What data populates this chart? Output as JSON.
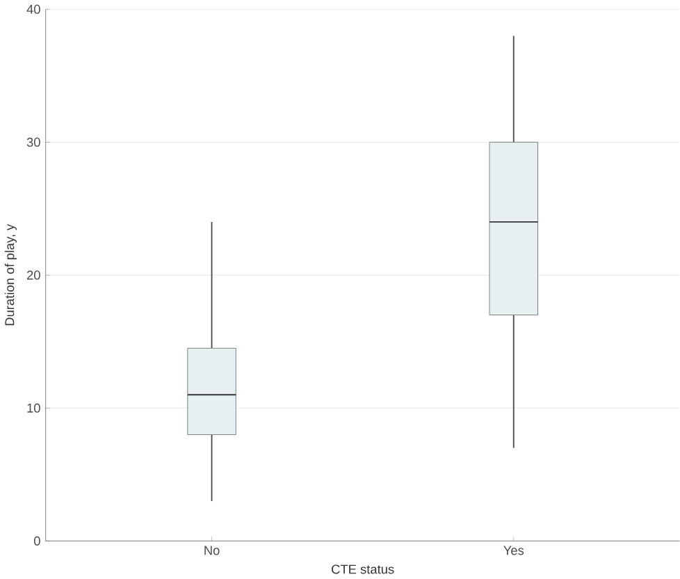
{
  "chart_data": {
    "type": "box",
    "xlabel": "CTE status",
    "ylabel": "Duration of play, y",
    "categories": [
      "No",
      "Yes"
    ],
    "color": "#e8eff2",
    "boxes": [
      {
        "low": 3,
        "q1": 8,
        "median": 11,
        "q3": 14.5,
        "high": 24
      },
      {
        "low": 7,
        "q1": 17,
        "median": 24,
        "q3": 30,
        "high": 38
      }
    ],
    "ylim": [
      0,
      40
    ],
    "yticks": [
      0,
      10,
      20,
      30,
      40
    ],
    "grid": "y"
  }
}
